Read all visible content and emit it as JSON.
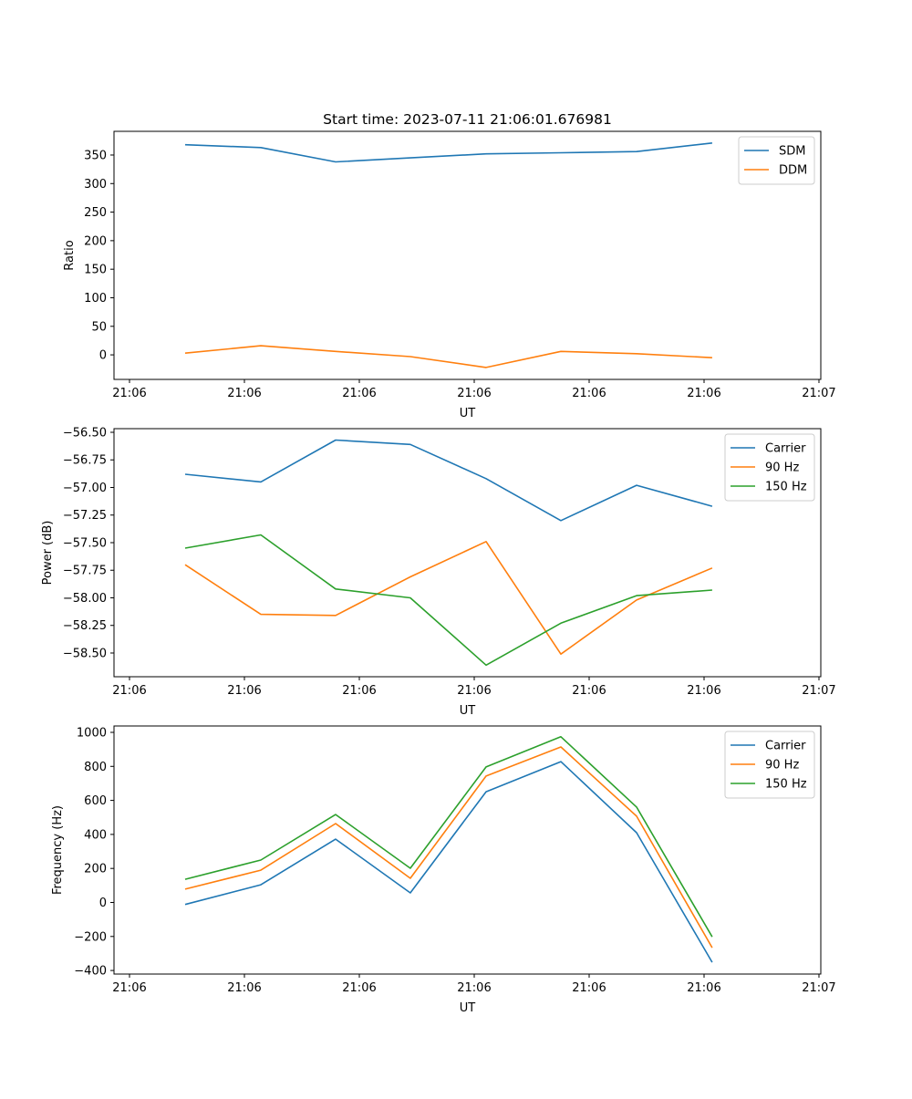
{
  "chart_data": [
    {
      "type": "line",
      "title": "Start time: 2023-07-11 21:06:01.676981",
      "xlabel": "UT",
      "ylabel": "Ratio",
      "x": [
        0.484,
        1.143,
        1.794,
        2.444,
        3.103,
        3.754,
        4.413,
        5.071
      ],
      "xticks": [
        0,
        1,
        2,
        3,
        4,
        5,
        6
      ],
      "xtick_labels": [
        "21:06",
        "21:06",
        "21:06",
        "21:06",
        "21:06",
        "21:06",
        "21:07"
      ],
      "xlim": [
        -0.135,
        6.016
      ],
      "ylim": [
        -43,
        391.5
      ],
      "yticks": [
        0,
        50,
        100,
        150,
        200,
        250,
        300,
        350
      ],
      "ytick_labels": [
        "0",
        "50",
        "100",
        "150",
        "200",
        "250",
        "300",
        "350"
      ],
      "legend": "top-right",
      "series": [
        {
          "name": "SDM",
          "color": "#1f77b4",
          "values": [
            368,
            363,
            338,
            345,
            352,
            354,
            356,
            371
          ]
        },
        {
          "name": "DDM",
          "color": "#ff7f0e",
          "values": [
            3,
            16,
            6,
            -3,
            -22,
            6,
            2,
            -5
          ]
        }
      ]
    },
    {
      "type": "line",
      "title": "",
      "xlabel": "UT",
      "ylabel": "Power (dB)",
      "x": [
        0.484,
        1.143,
        1.794,
        2.444,
        3.103,
        3.754,
        4.413,
        5.071
      ],
      "xticks": [
        0,
        1,
        2,
        3,
        4,
        5,
        6
      ],
      "xtick_labels": [
        "21:06",
        "21:06",
        "21:06",
        "21:06",
        "21:06",
        "21:06",
        "21:07"
      ],
      "xlim": [
        -0.135,
        6.016
      ],
      "ylim": [
        -58.715,
        -56.467
      ],
      "yticks": [
        -56.5,
        -56.75,
        -57.0,
        -57.25,
        -57.5,
        -57.75,
        -58.0,
        -58.25,
        -58.5
      ],
      "ytick_labels": [
        "−56.50",
        "−56.75",
        "−57.00",
        "−57.25",
        "−57.50",
        "−57.75",
        "−58.00",
        "−58.25",
        "−58.50"
      ],
      "legend": "top-right",
      "series": [
        {
          "name": "Carrier",
          "color": "#1f77b4",
          "values": [
            -56.88,
            -56.95,
            -56.57,
            -56.61,
            -56.92,
            -57.3,
            -56.98,
            -57.17
          ]
        },
        {
          "name": "90 Hz",
          "color": "#ff7f0e",
          "values": [
            -57.7,
            -58.15,
            -58.16,
            -57.81,
            -57.49,
            -58.51,
            -58.02,
            -57.73
          ]
        },
        {
          "name": "150 Hz",
          "color": "#2ca02c",
          "values": [
            -57.55,
            -57.43,
            -57.92,
            -58.0,
            -58.61,
            -58.23,
            -57.98,
            -57.93
          ]
        }
      ]
    },
    {
      "type": "line",
      "title": "",
      "xlabel": "UT",
      "ylabel": "Frequency (Hz)",
      "x": [
        0.484,
        1.143,
        1.794,
        2.444,
        3.103,
        3.754,
        4.413,
        5.071
      ],
      "xticks": [
        0,
        1,
        2,
        3,
        4,
        5,
        6
      ],
      "xtick_labels": [
        "21:06",
        "21:06",
        "21:06",
        "21:06",
        "21:06",
        "21:06",
        "21:07"
      ],
      "xlim": [
        -0.135,
        6.016
      ],
      "ylim": [
        -421,
        1037.5
      ],
      "yticks": [
        -400,
        -200,
        0,
        200,
        400,
        600,
        800,
        1000
      ],
      "ytick_labels": [
        "−400",
        "−200",
        "0",
        "200",
        "400",
        "600",
        "800",
        "1000"
      ],
      "legend": "top-right",
      "series": [
        {
          "name": "Carrier",
          "color": "#1f77b4",
          "values": [
            -12,
            104,
            372,
            56,
            651,
            828,
            410,
            -352
          ]
        },
        {
          "name": "90 Hz",
          "color": "#ff7f0e",
          "values": [
            78,
            190,
            464,
            142,
            743,
            914,
            507,
            -266
          ]
        },
        {
          "name": "150 Hz",
          "color": "#2ca02c",
          "values": [
            136,
            249,
            517,
            201,
            797,
            974,
            561,
            -202
          ]
        }
      ]
    }
  ]
}
